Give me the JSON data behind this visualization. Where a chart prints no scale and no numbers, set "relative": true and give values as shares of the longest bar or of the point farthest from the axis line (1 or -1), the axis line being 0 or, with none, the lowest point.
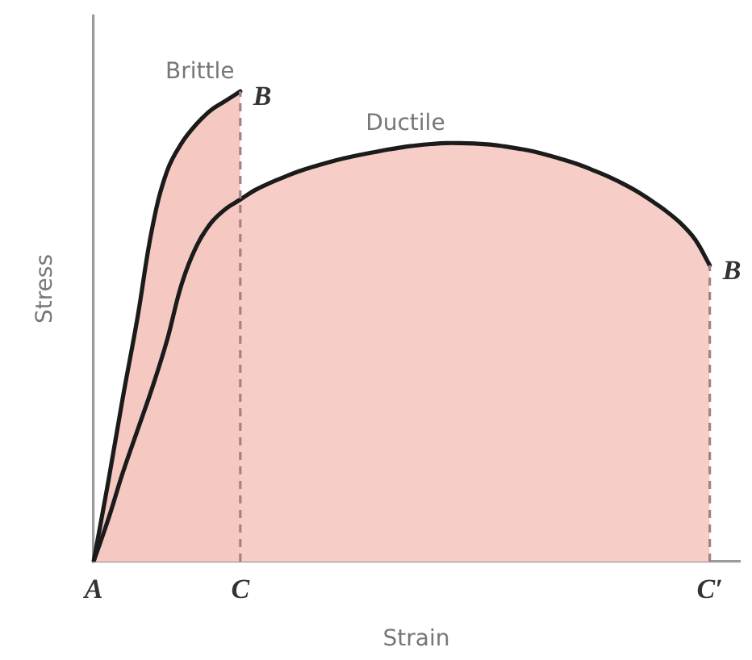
{
  "chart_data": {
    "type": "area",
    "xlabel": "Strain",
    "ylabel": "Stress",
    "relative": true,
    "categories": [
      "A",
      null,
      null,
      null,
      null,
      null,
      null,
      null,
      null,
      null,
      "C",
      null,
      null,
      null,
      null,
      null,
      null,
      null,
      null,
      null,
      null,
      null,
      null,
      null,
      null,
      null,
      null,
      null,
      null,
      null,
      null,
      null,
      null,
      null,
      null,
      null,
      null,
      null,
      null,
      null,
      null,
      null,
      "C′",
      null,
      null
    ],
    "series": [
      {
        "name": "Brittle",
        "color": "#f5c9c2",
        "values": [
          0,
          0.17,
          0.35,
          0.52,
          0.71,
          0.83,
          0.89,
          0.93,
          0.96,
          0.98,
          1,
          null,
          null,
          null,
          null,
          null,
          null,
          null,
          null,
          null,
          null,
          null,
          null,
          null,
          null,
          null,
          null,
          null,
          null,
          null,
          null,
          null,
          null,
          null,
          null,
          null,
          null,
          null,
          null,
          null,
          null,
          null,
          null,
          null,
          null
        ]
      },
      {
        "name": "Ductile",
        "color": "#f6cdc7",
        "values": [
          0,
          0.09,
          0.19,
          0.28,
          0.37,
          0.47,
          0.59,
          0.67,
          0.72,
          0.75,
          0.77,
          0.79,
          0.805,
          0.818,
          0.83,
          0.84,
          0.849,
          0.857,
          0.864,
          0.87,
          0.876,
          0.881,
          0.885,
          0.888,
          0.89,
          0.89,
          0.889,
          0.887,
          0.883,
          0.878,
          0.872,
          0.864,
          0.855,
          0.845,
          0.833,
          0.82,
          0.805,
          0.788,
          0.768,
          0.746,
          0.72,
          0.685,
          0.63,
          null,
          null
        ]
      }
    ],
    "ref_lines": [
      {
        "axis": "x",
        "value": "C",
        "color": "#a88080",
        "line_style": "dashed"
      },
      {
        "axis": "x",
        "value": "C′",
        "color": "#a88080",
        "line_style": "dashed"
      }
    ],
    "annotations": [
      {
        "text": "B",
        "x": "C",
        "y": 1
      },
      {
        "text": "B",
        "x": "C′",
        "y": 0.63
      }
    ]
  }
}
